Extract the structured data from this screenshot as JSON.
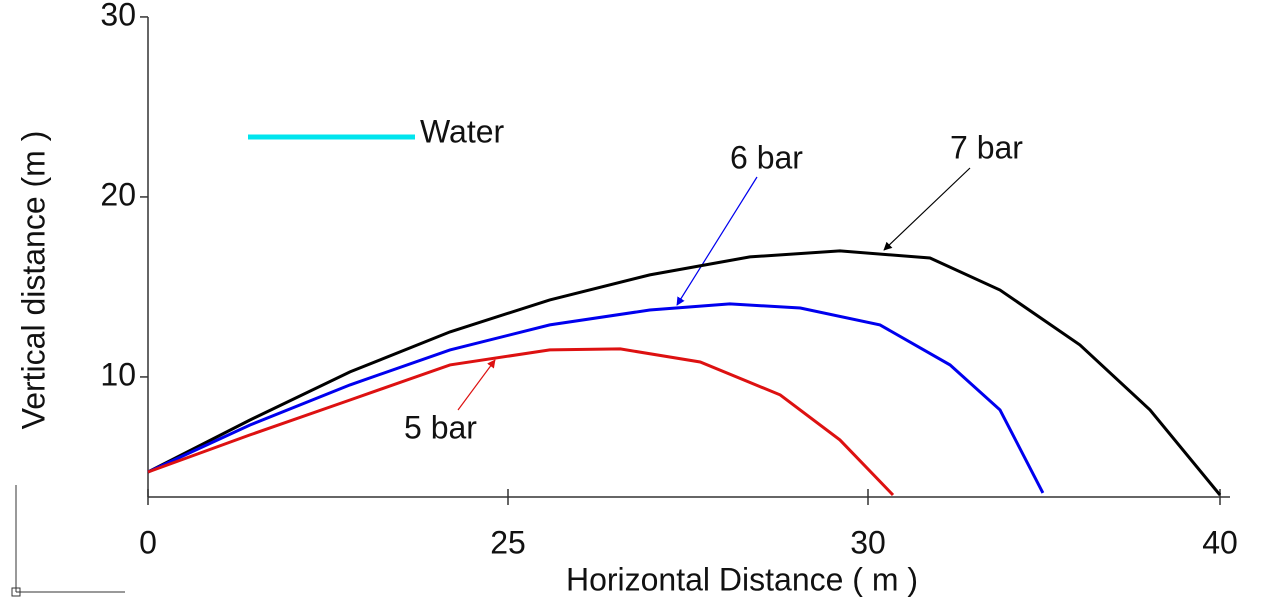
{
  "chart_data": {
    "type": "line",
    "x_label": "Horizontal Distance ( m )",
    "y_label": "Vertical distance (m )",
    "xlim": [
      0,
      40
    ],
    "xticks": [
      0,
      25,
      30,
      40
    ],
    "ylim": [
      3.33,
      30
    ],
    "yticks": [
      10,
      20,
      30
    ],
    "legend": {
      "label": "Water",
      "color": "#00e5ee"
    },
    "series": [
      {
        "name": "7 bar",
        "color": "#000000",
        "x": [
          0,
          7.08,
          14.03,
          20.97,
          25.58,
          26.97,
          28.36,
          29.61,
          31.76,
          33.75,
          36.02,
          38.01,
          40
        ],
        "values": [
          4.72,
          7.61,
          10.28,
          12.5,
          14.28,
          15.67,
          16.67,
          17.0,
          16.61,
          14.83,
          11.78,
          8.17,
          3.44
        ]
      },
      {
        "name": "6 bar",
        "color": "#0000ee",
        "x": [
          0,
          7.08,
          14.03,
          20.97,
          25.58,
          26.97,
          28.08,
          29.06,
          30.34,
          32.33,
          33.75,
          34.97
        ],
        "values": [
          4.72,
          7.33,
          9.56,
          11.5,
          12.89,
          13.72,
          14.06,
          13.83,
          12.89,
          10.67,
          8.17,
          3.56
        ]
      },
      {
        "name": "5 bar",
        "color": "#dd1111",
        "x": [
          0,
          7.08,
          14.03,
          20.97,
          25.58,
          26.56,
          27.67,
          28.78,
          29.61,
          30.71
        ],
        "values": [
          4.72,
          6.78,
          8.72,
          10.67,
          11.5,
          11.56,
          10.83,
          9.0,
          6.5,
          3.44
        ]
      }
    ]
  }
}
